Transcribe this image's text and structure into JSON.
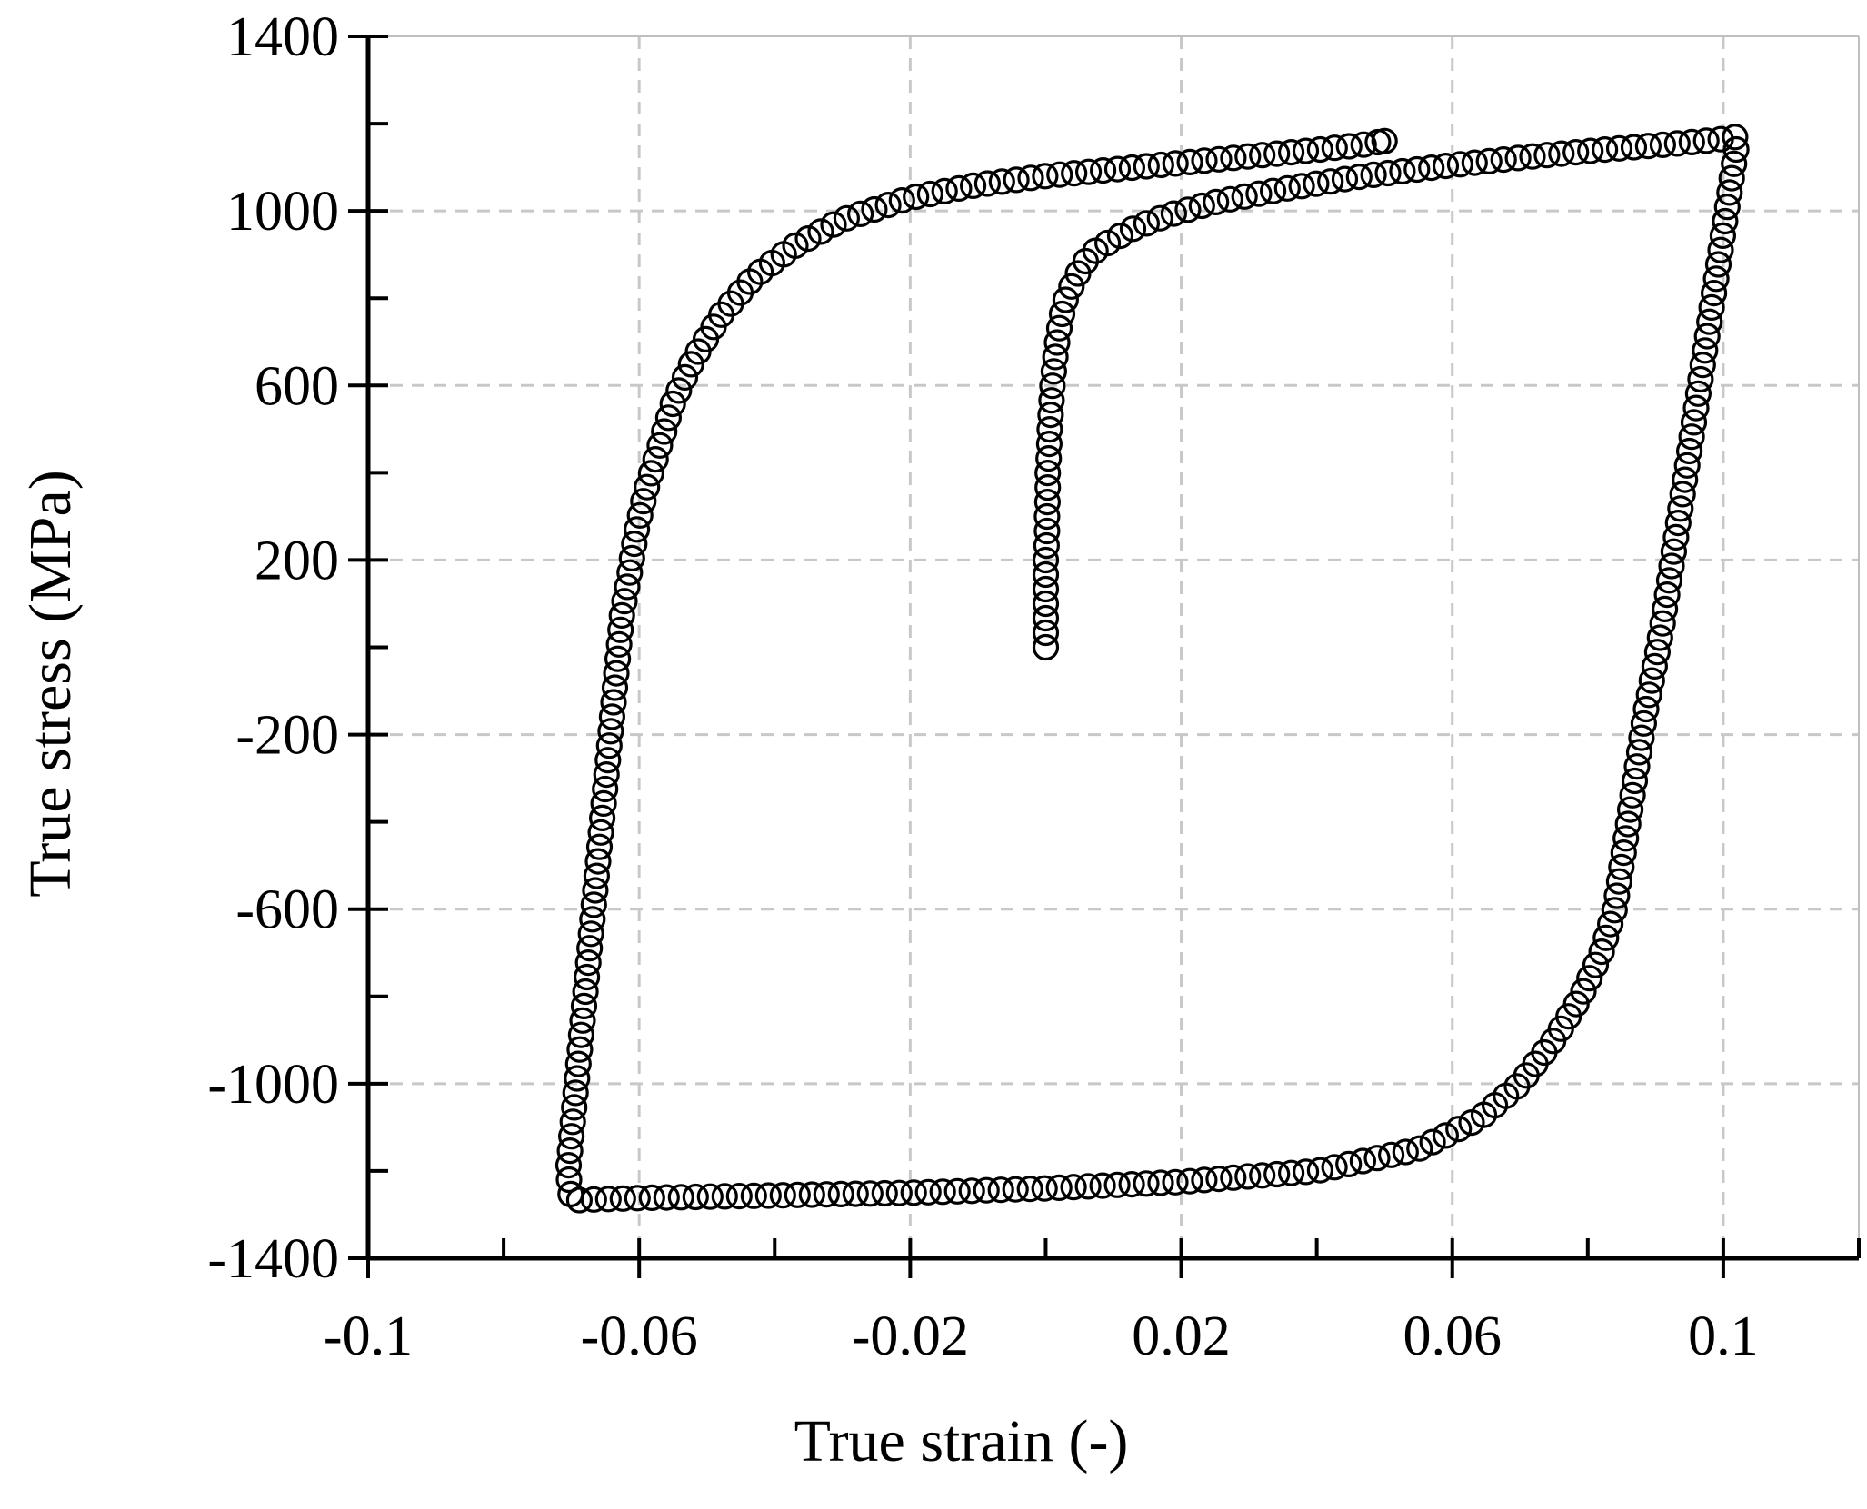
{
  "chart_data": {
    "type": "scatter",
    "title": "",
    "xlabel": "True strain (-)",
    "ylabel": "True stress (MPa)",
    "xlim": [
      -0.1,
      0.12
    ],
    "ylim": [
      -1400,
      1400
    ],
    "x_ticks": [
      -0.1,
      -0.06,
      -0.02,
      0.02,
      0.06,
      0.1
    ],
    "x_tick_labels": [
      "-0.1",
      "-0.06",
      "-0.02",
      "0.02",
      "0.06",
      "0.1"
    ],
    "x_minor_ticks": [
      -0.08,
      -0.04,
      0.0,
      0.04,
      0.08,
      0.12
    ],
    "y_ticks": [
      -1400,
      -1000,
      -600,
      -200,
      200,
      600,
      1000,
      1400
    ],
    "y_tick_labels": [
      "-1400",
      "-1000",
      "-600",
      "-200",
      "200",
      "600",
      "1000",
      "1400"
    ],
    "y_minor_ticks": [
      -1200,
      -800,
      -400,
      0,
      400,
      800,
      1200
    ],
    "grid": true,
    "legend": "none",
    "marker": "open-circle",
    "marker_color": "#000000",
    "series": [
      {
        "points": [
          [
            0.0,
            0
          ],
          [
            0.0,
            50
          ],
          [
            0.0,
            100
          ],
          [
            0.0,
            150
          ],
          [
            0.0,
            200
          ],
          [
            0.0002,
            250
          ],
          [
            0.0002,
            300
          ],
          [
            0.0003,
            350
          ],
          [
            0.0003,
            400
          ],
          [
            0.0005,
            450
          ],
          [
            0.0006,
            500
          ],
          [
            0.0008,
            550
          ],
          [
            0.001,
            600
          ],
          [
            0.0013,
            650
          ],
          [
            0.0017,
            700
          ],
          [
            0.0022,
            750
          ],
          [
            0.003,
            800
          ],
          [
            0.0045,
            850
          ],
          [
            0.0065,
            900
          ],
          [
            0.0095,
            930
          ],
          [
            0.013,
            960
          ],
          [
            0.018,
            990
          ],
          [
            0.025,
            1020
          ],
          [
            0.035,
            1050
          ],
          [
            0.047,
            1080
          ],
          [
            0.06,
            1105
          ],
          [
            0.072,
            1125
          ],
          [
            0.082,
            1140
          ],
          [
            0.09,
            1150
          ],
          [
            0.097,
            1160
          ],
          [
            0.1,
            1165
          ],
          [
            0.102,
            1170
          ],
          [
            0.102,
            1150
          ],
          [
            0.101,
            1050
          ],
          [
            0.1,
            950
          ],
          [
            0.099,
            850
          ],
          [
            0.098,
            750
          ],
          [
            0.097,
            650
          ],
          [
            0.096,
            550
          ],
          [
            0.095,
            450
          ],
          [
            0.094,
            350
          ],
          [
            0.093,
            250
          ],
          [
            0.092,
            150
          ],
          [
            0.091,
            50
          ],
          [
            0.0898,
            -50
          ],
          [
            0.0885,
            -150
          ],
          [
            0.087,
            -300
          ],
          [
            0.0855,
            -450
          ],
          [
            0.084,
            -600
          ],
          [
            0.082,
            -700
          ],
          [
            0.079,
            -800
          ],
          [
            0.075,
            -900
          ],
          [
            0.07,
            -1000
          ],
          [
            0.064,
            -1080
          ],
          [
            0.055,
            -1150
          ],
          [
            0.04,
            -1200
          ],
          [
            0.02,
            -1225
          ],
          [
            0.0,
            -1240
          ],
          [
            -0.02,
            -1250
          ],
          [
            -0.04,
            -1256
          ],
          [
            -0.06,
            -1262
          ],
          [
            -0.068,
            -1266
          ],
          [
            -0.07,
            -1268
          ],
          [
            -0.0705,
            -1200
          ],
          [
            -0.07,
            -1120
          ],
          [
            -0.0695,
            -1040
          ],
          [
            -0.069,
            -960
          ],
          [
            -0.0685,
            -880
          ],
          [
            -0.068,
            -800
          ],
          [
            -0.0675,
            -720
          ],
          [
            -0.067,
            -640
          ],
          [
            -0.0665,
            -560
          ],
          [
            -0.066,
            -480
          ],
          [
            -0.0655,
            -400
          ],
          [
            -0.065,
            -320
          ],
          [
            -0.0645,
            -240
          ],
          [
            -0.064,
            -160
          ],
          [
            -0.0635,
            -80
          ],
          [
            -0.063,
            0
          ],
          [
            -0.0625,
            80
          ],
          [
            -0.0615,
            160
          ],
          [
            -0.0605,
            260
          ],
          [
            -0.059,
            360
          ],
          [
            -0.057,
            460
          ],
          [
            -0.055,
            560
          ],
          [
            -0.052,
            660
          ],
          [
            -0.048,
            760
          ],
          [
            -0.043,
            850
          ],
          [
            -0.037,
            920
          ],
          [
            -0.03,
            980
          ],
          [
            -0.02,
            1030
          ],
          [
            -0.01,
            1060
          ],
          [
            0.0,
            1080
          ],
          [
            0.01,
            1095
          ],
          [
            0.02,
            1110
          ],
          [
            0.03,
            1125
          ],
          [
            0.04,
            1140
          ],
          [
            0.047,
            1152
          ],
          [
            0.05,
            1160
          ]
        ]
      }
    ]
  }
}
